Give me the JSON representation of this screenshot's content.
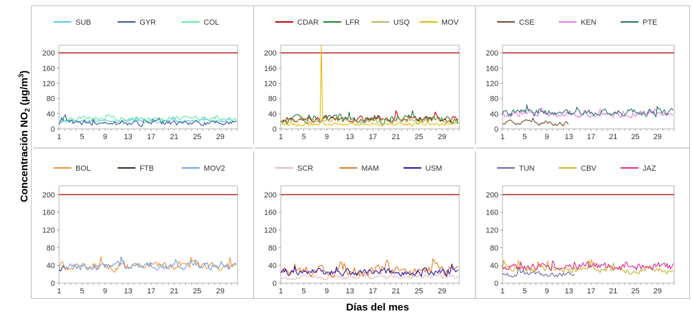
{
  "ylabel": {
    "pre": "Concentración NO",
    "sub": "2",
    "mid": " (µg/m",
    "sup": "3",
    "post": ")"
  },
  "xlabel": "Días del mes",
  "colors": {
    "limit": "#b22222",
    "axis": "#999999"
  },
  "chart_data": [
    {
      "type": "line",
      "ylim": [
        0,
        220
      ],
      "yticks": [
        0,
        40,
        80,
        120,
        160,
        200
      ],
      "xticks": [
        1,
        5,
        9,
        13,
        17,
        21,
        25,
        29
      ],
      "limit": 200,
      "series": [
        {
          "name": "SUB",
          "color": "#5bc4ef",
          "level": 20,
          "amp": 6
        },
        {
          "name": "GYR",
          "color": "#2f5597",
          "level": 15,
          "amp": 12
        },
        {
          "name": "COL",
          "color": "#5ce6a0",
          "level": 26,
          "amp": 12
        }
      ]
    },
    {
      "type": "line",
      "ylim": [
        0,
        220
      ],
      "yticks": [
        0,
        40,
        80,
        120,
        160,
        200
      ],
      "xticks": [
        1,
        5,
        9,
        13,
        17,
        21,
        25,
        29
      ],
      "limit": 200,
      "series": [
        {
          "name": "CDAR",
          "color": "#c00000",
          "level": 25,
          "amp": 14
        },
        {
          "name": "LFR",
          "color": "#1e7b34",
          "level": 25,
          "amp": 18
        },
        {
          "name": "USQ",
          "color": "#b5b560",
          "level": 20,
          "amp": 12
        },
        {
          "name": "MOV",
          "color": "#e6b800",
          "level": 12,
          "amp": 8,
          "spike": [
            8,
            228
          ]
        }
      ]
    },
    {
      "type": "line",
      "ylim": [
        0,
        220
      ],
      "yticks": [
        0,
        40,
        80,
        120,
        160,
        200
      ],
      "xticks": [
        1,
        5,
        9,
        13,
        17,
        21,
        25,
        29
      ],
      "limit": 200,
      "series": [
        {
          "name": "CSE",
          "color": "#6b4a2a",
          "level": 15,
          "amp": 10,
          "xmax": 13
        },
        {
          "name": "KEN",
          "color": "#e07be0",
          "level": 38,
          "amp": 12
        },
        {
          "name": "PTE",
          "color": "#256b6b",
          "level": 42,
          "amp": 16
        }
      ]
    },
    {
      "type": "line",
      "ylim": [
        0,
        220
      ],
      "yticks": [
        0,
        40,
        80,
        120,
        160,
        200
      ],
      "xticks": [
        1,
        5,
        9,
        13,
        17,
        21,
        25,
        29
      ],
      "limit": 200,
      "series": [
        {
          "name": "BOL",
          "color": "#e8953a",
          "level": 38,
          "amp": 16
        },
        {
          "name": "FTB",
          "color": "#3b2a1a",
          "level": 32,
          "amp": 10,
          "xmax": 2
        },
        {
          "name": "MOV2",
          "color": "#6d9eeb",
          "level": 38,
          "amp": 14
        }
      ]
    },
    {
      "type": "line",
      "ylim": [
        0,
        220
      ],
      "yticks": [
        0,
        40,
        80,
        120,
        160,
        200
      ],
      "xticks": [
        1,
        5,
        9,
        13,
        17,
        21,
        25,
        29
      ],
      "limit": 200,
      "series": [
        {
          "name": "SCR",
          "color": "#e8b4b4",
          "level": 12,
          "amp": 8
        },
        {
          "name": "MAM",
          "color": "#e07820",
          "level": 28,
          "amp": 20
        },
        {
          "name": "USM",
          "color": "#2a0fa8",
          "level": 24,
          "amp": 14
        }
      ]
    },
    {
      "type": "line",
      "ylim": [
        0,
        220
      ],
      "yticks": [
        0,
        40,
        80,
        120,
        160,
        200
      ],
      "xticks": [
        1,
        5,
        9,
        13,
        17,
        21,
        25,
        29
      ],
      "limit": 200,
      "series": [
        {
          "name": "TUN",
          "color": "#6a5fa8",
          "level": 20,
          "amp": 10,
          "xmax": 14
        },
        {
          "name": "CBV",
          "color": "#c8b02a",
          "level": 30,
          "amp": 14
        },
        {
          "name": "JAZ",
          "color": "#e0288a",
          "level": 38,
          "amp": 16
        }
      ]
    }
  ]
}
